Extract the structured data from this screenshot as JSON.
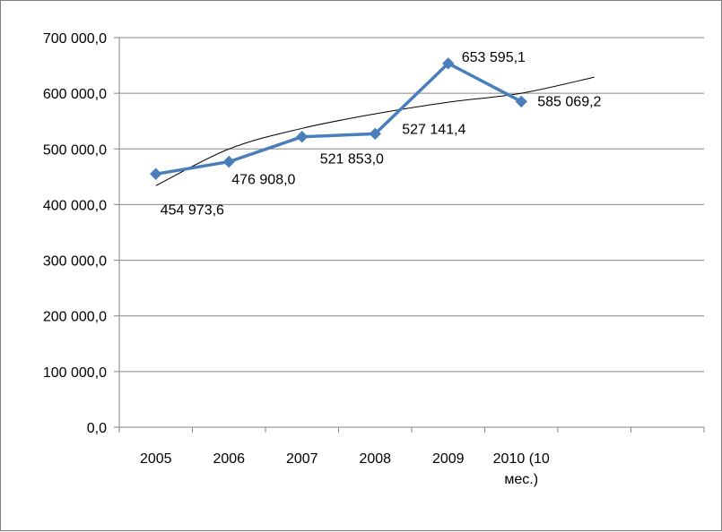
{
  "chart_data": {
    "type": "line",
    "categories": [
      "2005",
      "2006",
      "2007",
      "2008",
      "2009",
      "2010 (10 мес.)"
    ],
    "category_lines": [
      [
        "2005"
      ],
      [
        "2006"
      ],
      [
        "2007"
      ],
      [
        "2008"
      ],
      [
        "2009"
      ],
      [
        "2010 (10",
        "мес.)"
      ]
    ],
    "series": [
      {
        "values": [
          454973.6,
          476908.0,
          521853.0,
          527141.4,
          653595.1,
          585069.2
        ],
        "data_labels": [
          "454 973,6",
          "476 908,0",
          "521 853,0",
          "527 141,4",
          "653 595,1",
          "585 069,2"
        ],
        "color": "#4a7ebb",
        "marker": "diamond"
      }
    ],
    "trendline": {
      "type": "logarithmic",
      "color": "#000000",
      "x": [
        1,
        2,
        3,
        4,
        5,
        6,
        7
      ],
      "values": [
        434000,
        500000,
        537000,
        563000,
        584000,
        600000,
        629000
      ]
    },
    "y_ticks": [
      0,
      100000,
      200000,
      300000,
      400000,
      500000,
      600000,
      700000
    ],
    "y_tick_labels": [
      "0,0",
      "100 000,0",
      "200 000,0",
      "300 000,0",
      "400 000,0",
      "500 000,0",
      "600 000,0",
      "700 000,0"
    ],
    "ylim": [
      0,
      700000
    ],
    "x_slots": 8,
    "title": "",
    "xlabel": "",
    "ylabel": "",
    "grid": "horizontal",
    "legend": "none"
  }
}
